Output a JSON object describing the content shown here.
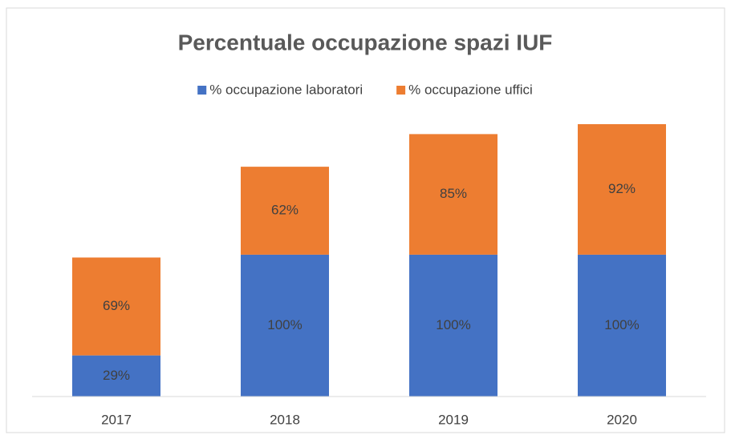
{
  "chart_data": {
    "type": "stacked_bar",
    "title": "Percentuale occupazione spazi IUF",
    "categories": [
      "2017",
      "2018",
      "2019",
      "2020"
    ],
    "series": [
      {
        "name": "% occupazione laboratori",
        "color": "#4472c4",
        "values": [
          29,
          100,
          100,
          100
        ],
        "value_labels": [
          "29%",
          "100%",
          "100%",
          "100%"
        ]
      },
      {
        "name": "% occupazione uffici",
        "color": "#ed7d31",
        "values": [
          69,
          62,
          85,
          92
        ],
        "value_labels": [
          "69%",
          "62%",
          "85%",
          "92%"
        ]
      }
    ],
    "legend": "top"
  }
}
